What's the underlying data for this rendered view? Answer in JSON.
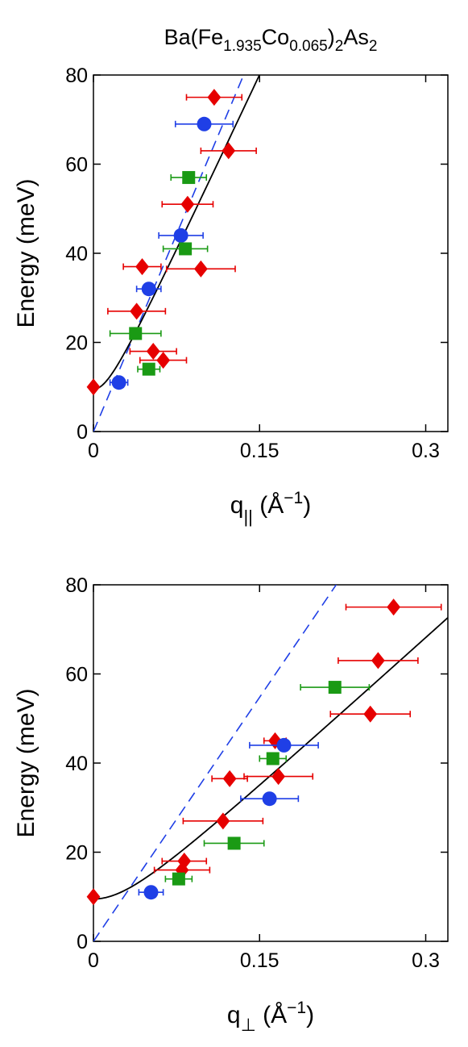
{
  "figure": {
    "title": {
      "base": "Ba(Fe",
      "sub1": "1.935",
      "mid": "Co",
      "sub2": "0.065",
      "end": ")",
      "sub3": "2",
      "tail": "As",
      "sub4": "2"
    }
  },
  "colors": {
    "diamond": "#e60000",
    "circle": "#1f3fe6",
    "square": "#1a9a14",
    "fit_line": "#000000",
    "dashed_line": "#1f3fe6"
  },
  "chart_data": [
    {
      "type": "scatter",
      "id": "parallel",
      "xlabel": {
        "symbol": "q",
        "sub": "||",
        "unit_open": " (Å",
        "sup": "−1",
        "unit_close": ")"
      },
      "ylabel": "Energy (meV)",
      "xlim": [
        0,
        0.32
      ],
      "ylim": [
        0,
        80
      ],
      "xticks": [
        0,
        0.15,
        0.3
      ],
      "xtick_labels": [
        "0",
        "0.15",
        "0.3"
      ],
      "yticks": [
        0,
        20,
        40,
        60,
        80
      ],
      "ytick_labels": [
        "0",
        "20",
        "40",
        "60",
        "80"
      ],
      "series": [
        {
          "marker": "diamond",
          "points": [
            {
              "x": 0.0,
              "y": 10,
              "xerr": 0
            },
            {
              "x": 0.054,
              "y": 18,
              "xerr": 0.021
            },
            {
              "x": 0.063,
              "y": 16,
              "xerr": 0.021
            },
            {
              "x": 0.039,
              "y": 27,
              "xerr": 0.026
            },
            {
              "x": 0.044,
              "y": 37,
              "xerr": 0.017
            },
            {
              "x": 0.097,
              "y": 36.5,
              "xerr": 0.031
            },
            {
              "x": 0.085,
              "y": 51,
              "xerr": 0.023
            },
            {
              "x": 0.122,
              "y": 63,
              "xerr": 0.025
            },
            {
              "x": 0.109,
              "y": 75,
              "xerr": 0.025
            }
          ]
        },
        {
          "marker": "circle",
          "points": [
            {
              "x": 0.023,
              "y": 11,
              "xerr": 0.008
            },
            {
              "x": 0.05,
              "y": 32,
              "xerr": 0.011
            },
            {
              "x": 0.079,
              "y": 44,
              "xerr": 0.02
            },
            {
              "x": 0.1,
              "y": 69,
              "xerr": 0.026
            }
          ]
        },
        {
          "marker": "square",
          "points": [
            {
              "x": 0.05,
              "y": 14,
              "xerr": 0.01
            },
            {
              "x": 0.038,
              "y": 22,
              "xerr": 0.023
            },
            {
              "x": 0.083,
              "y": 41,
              "xerr": 0.02
            },
            {
              "x": 0.086,
              "y": 57,
              "xerr": 0.016
            }
          ]
        }
      ],
      "fit_curve": {
        "gap": 9.5,
        "velocity": 530
      },
      "dashed_line": {
        "slope": 590
      }
    },
    {
      "type": "scatter",
      "id": "perpendicular",
      "xlabel": {
        "symbol": "q",
        "sub": "⊥",
        "unit_open": " (Å",
        "sup": "−1",
        "unit_close": ")"
      },
      "ylabel": "Energy (meV)",
      "xlim": [
        0,
        0.32
      ],
      "ylim": [
        0,
        80
      ],
      "xticks": [
        0,
        0.15,
        0.3
      ],
      "xtick_labels": [
        "0",
        "0.15",
        "0.3"
      ],
      "yticks": [
        0,
        20,
        40,
        60,
        80
      ],
      "ytick_labels": [
        "0",
        "20",
        "40",
        "60",
        "80"
      ],
      "series": [
        {
          "marker": "diamond",
          "points": [
            {
              "x": 0.0,
              "y": 10,
              "xerr": 0
            },
            {
              "x": 0.08,
              "y": 16,
              "xerr": 0.025
            },
            {
              "x": 0.082,
              "y": 18,
              "xerr": 0.02
            },
            {
              "x": 0.117,
              "y": 27,
              "xerr": 0.036
            },
            {
              "x": 0.123,
              "y": 36.5,
              "xerr": 0.016
            },
            {
              "x": 0.167,
              "y": 37,
              "xerr": 0.031
            },
            {
              "x": 0.164,
              "y": 45,
              "xerr": 0.01
            },
            {
              "x": 0.25,
              "y": 51,
              "xerr": 0.036
            },
            {
              "x": 0.257,
              "y": 63,
              "xerr": 0.036
            },
            {
              "x": 0.271,
              "y": 75,
              "xerr": 0.043
            }
          ]
        },
        {
          "marker": "circle",
          "points": [
            {
              "x": 0.052,
              "y": 11,
              "xerr": 0.011
            },
            {
              "x": 0.159,
              "y": 32,
              "xerr": 0.026
            },
            {
              "x": 0.172,
              "y": 44,
              "xerr": 0.031
            }
          ]
        },
        {
          "marker": "square",
          "points": [
            {
              "x": 0.077,
              "y": 14,
              "xerr": 0.012
            },
            {
              "x": 0.127,
              "y": 22,
              "xerr": 0.027
            },
            {
              "x": 0.162,
              "y": 41,
              "xerr": 0.012
            },
            {
              "x": 0.218,
              "y": 57,
              "xerr": 0.031
            }
          ]
        }
      ],
      "fit_curve": {
        "gap": 9.5,
        "velocity": 225
      },
      "dashed_line": {
        "slope": 365
      }
    }
  ]
}
